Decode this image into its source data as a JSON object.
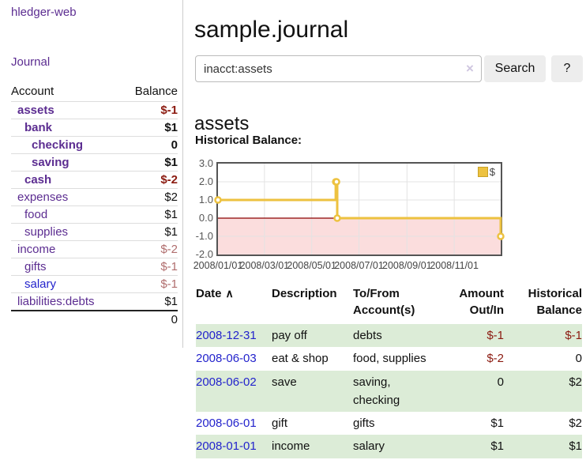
{
  "app": {
    "brand": "hledger-web",
    "nav_journal": "Journal"
  },
  "sidebar": {
    "headers": {
      "account": "Account",
      "balance": "Balance"
    },
    "accounts": [
      {
        "name": "assets",
        "indent": 1,
        "bold": true,
        "balance": "$-1"
      },
      {
        "name": "bank",
        "indent": 2,
        "bold": true,
        "balance": "$1"
      },
      {
        "name": "checking",
        "indent": 3,
        "bold": true,
        "balance": "0"
      },
      {
        "name": "saving",
        "indent": 3,
        "bold": true,
        "balance": "$1"
      },
      {
        "name": "cash",
        "indent": 2,
        "bold": true,
        "balance": "$-2"
      },
      {
        "name": "expenses",
        "indent": 1,
        "bold": false,
        "balance": "$2"
      },
      {
        "name": "food",
        "indent": 2,
        "bold": false,
        "balance": "$1"
      },
      {
        "name": "supplies",
        "indent": 2,
        "bold": false,
        "balance": "$1"
      },
      {
        "name": "income",
        "indent": 1,
        "bold": false,
        "balance": "$-2"
      },
      {
        "name": "gifts",
        "indent": 2,
        "bold": false,
        "balance": "$-1"
      },
      {
        "name": "salary",
        "indent": 2,
        "bold": false,
        "balance": "$-1",
        "blue": true
      },
      {
        "name": "liabilities:debts",
        "indent": 1,
        "bold": false,
        "balance": "$1"
      }
    ],
    "total": "0"
  },
  "header": {
    "title": "sample.journal"
  },
  "search": {
    "value": "inacct:assets",
    "clear_icon": "×",
    "button_label": "Search",
    "help_label": "?"
  },
  "account_page": {
    "heading": "assets",
    "chart_label": "Historical Balance:"
  },
  "chart_data": {
    "type": "line",
    "style": "step",
    "title": "Historical Balance:",
    "series": [
      {
        "name": "$",
        "color": "#edc240",
        "points": [
          [
            "2008-01-01",
            1
          ],
          [
            "2008-06-01",
            2
          ],
          [
            "2008-06-02",
            2
          ],
          [
            "2008-06-03",
            0
          ],
          [
            "2008-12-31",
            -1
          ]
        ]
      }
    ],
    "x_range": [
      "2008-01-01",
      "2008-12-31"
    ],
    "ylim": [
      -2,
      3
    ],
    "y_ticks": [
      "3.0",
      "2.0",
      "1.0",
      "0.0",
      "-1.0",
      "-2.0"
    ],
    "x_ticks": [
      "2008/01/01",
      "2008/03/01",
      "2008/05/01",
      "2008/07/01",
      "2008/09/01",
      "2008/11/01"
    ],
    "grid": true,
    "legend_position": "top-right",
    "negative_region": true
  },
  "register": {
    "headers": {
      "date": "Date",
      "description": "Description",
      "tofrom": "To/From Account(s)",
      "amount": "Amount Out/In",
      "balance": "Historical Balance"
    },
    "sort_icon": "∧",
    "rows": [
      {
        "date": "2008-12-31",
        "description": "pay off",
        "accounts": "debts",
        "amount": "$-1",
        "balance": "$-1"
      },
      {
        "date": "2008-06-03",
        "description": "eat & shop",
        "accounts": "food, supplies",
        "amount": "$-2",
        "balance": "0"
      },
      {
        "date": "2008-06-02",
        "description": "save",
        "accounts": "saving, checking",
        "amount": "0",
        "balance": "$2"
      },
      {
        "date": "2008-06-01",
        "description": "gift",
        "accounts": "gifts",
        "amount": "$1",
        "balance": "$2"
      },
      {
        "date": "2008-01-01",
        "description": "income",
        "accounts": "salary",
        "amount": "$1",
        "balance": "$1"
      }
    ]
  },
  "colors": {
    "link_purple": "#5c2d91",
    "link_blue": "#2323cc",
    "negative_strong": "#8b1a10",
    "negative_muted": "#b06d6d",
    "row_stripe_green": "#dcecd7",
    "series_gold": "#edc240",
    "chart_negative_fill": "#fbdddd",
    "chart_zero_line": "#8b0000",
    "chart_grid": "#e3e3e3",
    "chart_border": "#545454"
  }
}
